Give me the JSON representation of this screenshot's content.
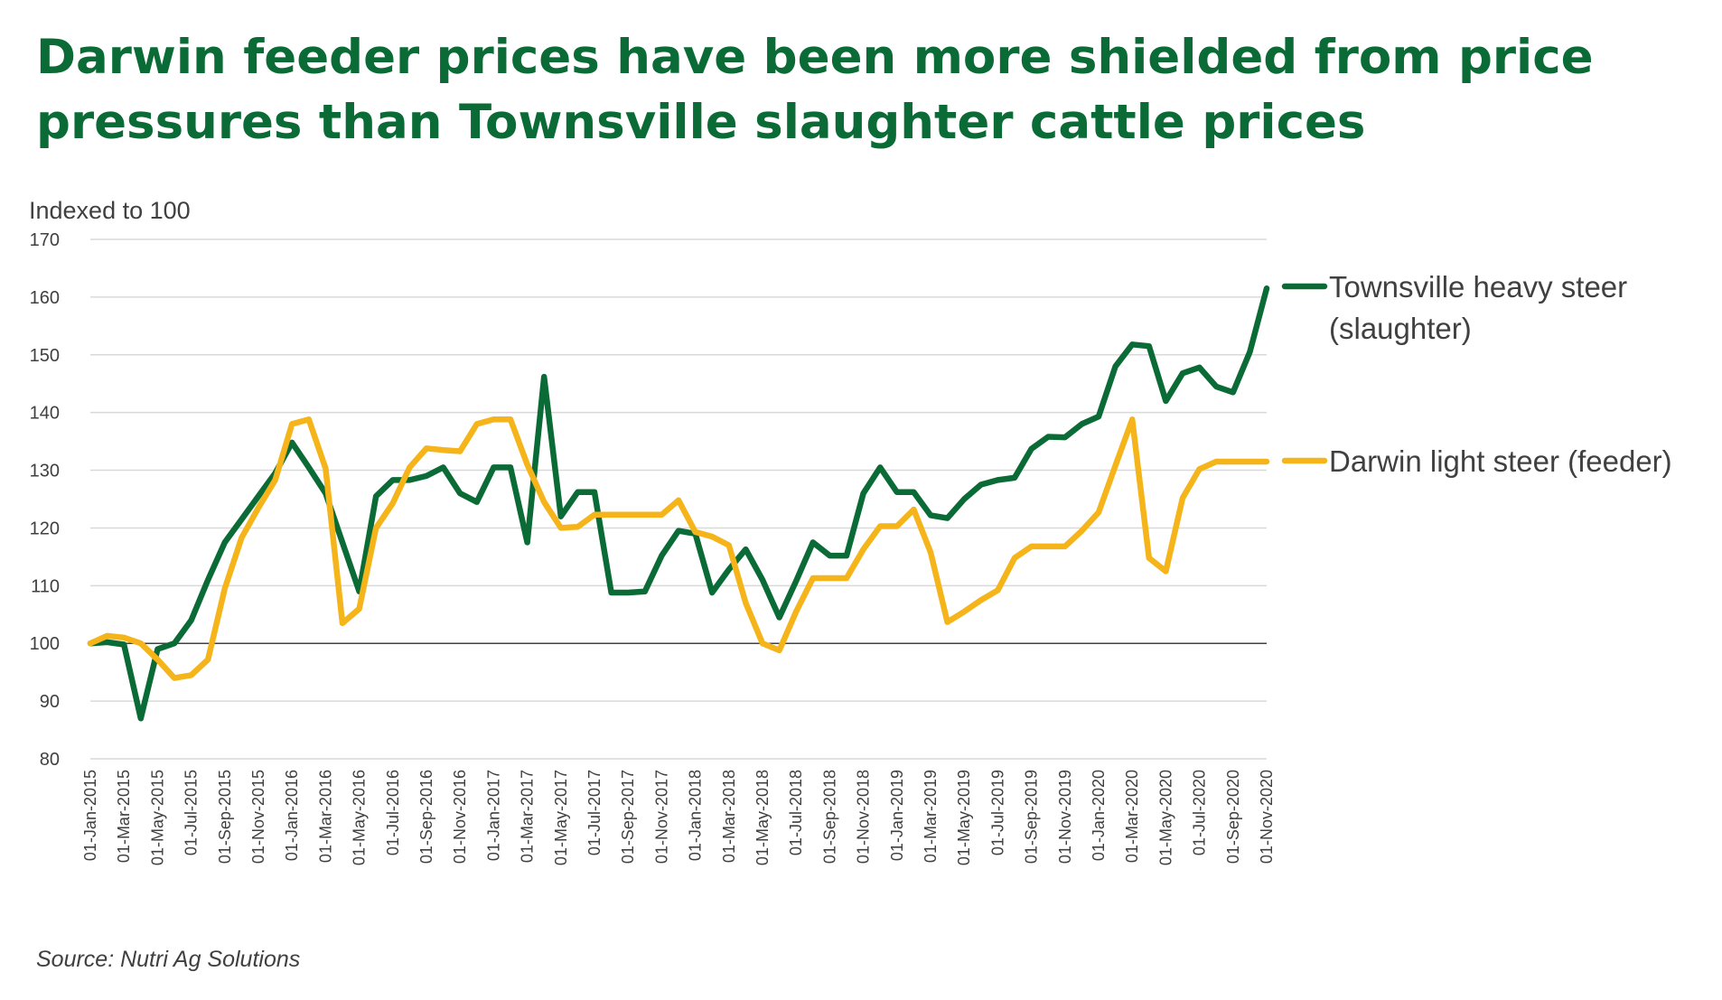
{
  "title": {
    "line1": "Darwin feeder prices have been more shielded from price",
    "line2": "pressures than Townsville slaughter cattle prices"
  },
  "source": "Source: Nutri Ag Solutions",
  "chart_data": {
    "type": "line",
    "ylabel": "Indexed to 100",
    "ylim": [
      80,
      170
    ],
    "yticks": [
      80,
      90,
      100,
      110,
      120,
      130,
      140,
      150,
      160,
      170
    ],
    "grid": true,
    "reference_line": 100,
    "legend_placement": "right",
    "x_start": "01-Jan-2015",
    "x_end": "01-Nov-2020",
    "x_tick_labels": [
      "01-Jan-2015",
      "01-Mar-2015",
      "01-May-2015",
      "01-Jul-2015",
      "01-Sep-2015",
      "01-Nov-2015",
      "01-Jan-2016",
      "01-Mar-2016",
      "01-May-2016",
      "01-Jul-2016",
      "01-Sep-2016",
      "01-Nov-2016",
      "01-Jan-2017",
      "01-Mar-2017",
      "01-May-2017",
      "01-Jul-2017",
      "01-Sep-2017",
      "01-Nov-2017",
      "01-Jan-2018",
      "01-Mar-2018",
      "01-May-2018",
      "01-Jul-2018",
      "01-Sep-2018",
      "01-Nov-2018",
      "01-Jan-2019",
      "01-Mar-2019",
      "01-May-2019",
      "01-Jul-2019",
      "01-Sep-2019",
      "01-Nov-2019",
      "01-Jan-2020",
      "01-Mar-2020",
      "01-May-2020",
      "01-Jul-2020",
      "01-Sep-2020",
      "01-Nov-2020"
    ],
    "series": [
      {
        "name": "Townsville heavy steer (slaughter)",
        "color": "#0b6b36",
        "points": [
          [
            "01-Jan-2015",
            100
          ],
          [
            "01-Feb-2015",
            100.2
          ],
          [
            "01-Mar-2015",
            99.8
          ],
          [
            "01-Apr-2015",
            87
          ],
          [
            "01-May-2015",
            99
          ],
          [
            "01-Jun-2015",
            100
          ],
          [
            "01-Jul-2015",
            104
          ],
          [
            "01-Aug-2015",
            111
          ],
          [
            "01-Sep-2015",
            117.5
          ],
          [
            "01-Oct-2015",
            121.5
          ],
          [
            "01-Nov-2015",
            125.5
          ],
          [
            "01-Dec-2015",
            129.5
          ],
          [
            "01-Jan-2016",
            134.8
          ],
          [
            "01-Feb-2016",
            130.5
          ],
          [
            "01-Mar-2016",
            126
          ],
          [
            "01-Apr-2016",
            117.5
          ],
          [
            "01-May-2016",
            109
          ],
          [
            "01-Jun-2016",
            125.5
          ],
          [
            "01-Jul-2016",
            128.3
          ],
          [
            "01-Aug-2016",
            128.3
          ],
          [
            "01-Sep-2016",
            129
          ],
          [
            "01-Oct-2016",
            130.5
          ],
          [
            "01-Nov-2016",
            126
          ],
          [
            "01-Dec-2016",
            124.5
          ],
          [
            "01-Jan-2017",
            130.5
          ],
          [
            "01-Feb-2017",
            130.5
          ],
          [
            "01-Mar-2017",
            117.5
          ],
          [
            "01-Apr-2017",
            146.2
          ],
          [
            "01-May-2017",
            122
          ],
          [
            "01-Jun-2017",
            126.2
          ],
          [
            "01-Jul-2017",
            126.2
          ],
          [
            "01-Aug-2017",
            108.8
          ],
          [
            "01-Sep-2017",
            108.8
          ],
          [
            "01-Oct-2017",
            109
          ],
          [
            "01-Nov-2017",
            115.2
          ],
          [
            "01-Dec-2017",
            119.5
          ],
          [
            "01-Jan-2018",
            119
          ],
          [
            "01-Feb-2018",
            108.8
          ],
          [
            "01-Mar-2018",
            112.8
          ],
          [
            "01-Apr-2018",
            116.3
          ],
          [
            "01-May-2018",
            111
          ],
          [
            "01-Jun-2018",
            104.5
          ],
          [
            "01-Jul-2018",
            110.8
          ],
          [
            "01-Aug-2018",
            117.5
          ],
          [
            "01-Sep-2018",
            115.2
          ],
          [
            "01-Oct-2018",
            115.2
          ],
          [
            "01-Nov-2018",
            126
          ],
          [
            "01-Dec-2018",
            130.5
          ],
          [
            "01-Jan-2019",
            126.2
          ],
          [
            "01-Feb-2019",
            126.2
          ],
          [
            "01-Mar-2019",
            122.2
          ],
          [
            "01-Apr-2019",
            121.7
          ],
          [
            "01-May-2019",
            125
          ],
          [
            "01-Jun-2019",
            127.5
          ],
          [
            "01-Jul-2019",
            128.3
          ],
          [
            "01-Aug-2019",
            128.7
          ],
          [
            "01-Sep-2019",
            133.7
          ],
          [
            "01-Oct-2019",
            135.8
          ],
          [
            "01-Nov-2019",
            135.7
          ],
          [
            "01-Dec-2019",
            138
          ],
          [
            "01-Jan-2020",
            139.3
          ],
          [
            "01-Feb-2020",
            148
          ],
          [
            "01-Mar-2020",
            151.8
          ],
          [
            "01-Apr-2020",
            151.5
          ],
          [
            "01-May-2020",
            142
          ],
          [
            "01-Jun-2020",
            146.8
          ],
          [
            "01-Jul-2020",
            147.8
          ],
          [
            "01-Aug-2020",
            144.5
          ],
          [
            "01-Sep-2020",
            143.5
          ],
          [
            "01-Oct-2020",
            150.5
          ],
          [
            "01-Nov-2020",
            161.5
          ]
        ]
      },
      {
        "name": "Darwin light steer (feeder)",
        "color": "#f4b41a",
        "points": [
          [
            "01-Jan-2015",
            100
          ],
          [
            "01-Feb-2015",
            101.3
          ],
          [
            "01-Mar-2015",
            101
          ],
          [
            "01-Apr-2015",
            100
          ],
          [
            "01-May-2015",
            97.2
          ],
          [
            "01-Jun-2015",
            94
          ],
          [
            "01-Jul-2015",
            94.5
          ],
          [
            "01-Aug-2015",
            97.2
          ],
          [
            "01-Sep-2015",
            109.5
          ],
          [
            "01-Oct-2015",
            118.3
          ],
          [
            "01-Nov-2015",
            123.5
          ],
          [
            "01-Dec-2015",
            128.3
          ],
          [
            "01-Jan-2016",
            138
          ],
          [
            "01-Feb-2016",
            138.8
          ],
          [
            "01-Mar-2016",
            130.3
          ],
          [
            "01-Apr-2016",
            103.5
          ],
          [
            "01-May-2016",
            106
          ],
          [
            "01-Jun-2016",
            120
          ],
          [
            "01-Jul-2016",
            124.3
          ],
          [
            "01-Aug-2016",
            130.5
          ],
          [
            "01-Sep-2016",
            133.8
          ],
          [
            "01-Oct-2016",
            133.5
          ],
          [
            "01-Nov-2016",
            133.3
          ],
          [
            "01-Dec-2016",
            138
          ],
          [
            "01-Jan-2017",
            138.8
          ],
          [
            "01-Feb-2017",
            138.8
          ],
          [
            "01-Mar-2017",
            131
          ],
          [
            "01-Apr-2017",
            124.5
          ],
          [
            "01-May-2017",
            120
          ],
          [
            "01-Jun-2017",
            120.2
          ],
          [
            "01-Jul-2017",
            122.3
          ],
          [
            "01-Aug-2017",
            122.3
          ],
          [
            "01-Sep-2017",
            122.3
          ],
          [
            "01-Oct-2017",
            122.3
          ],
          [
            "01-Nov-2017",
            122.3
          ],
          [
            "01-Dec-2017",
            124.8
          ],
          [
            "01-Jan-2018",
            119.3
          ],
          [
            "01-Feb-2018",
            118.5
          ],
          [
            "01-Mar-2018",
            117
          ],
          [
            "01-Apr-2018",
            107
          ],
          [
            "01-May-2018",
            100
          ],
          [
            "01-Jun-2018",
            98.8
          ],
          [
            "01-Jul-2018",
            105.5
          ],
          [
            "01-Aug-2018",
            111.3
          ],
          [
            "01-Sep-2018",
            111.3
          ],
          [
            "01-Oct-2018",
            111.3
          ],
          [
            "01-Nov-2018",
            116.3
          ],
          [
            "01-Dec-2018",
            120.3
          ],
          [
            "01-Jan-2019",
            120.3
          ],
          [
            "01-Feb-2019",
            123.2
          ],
          [
            "01-Mar-2019",
            115.8
          ],
          [
            "01-Apr-2019",
            103.7
          ],
          [
            "01-May-2019",
            105.5
          ],
          [
            "01-Jun-2019",
            107.5
          ],
          [
            "01-Jul-2019",
            109.2
          ],
          [
            "01-Aug-2019",
            114.8
          ],
          [
            "01-Sep-2019",
            116.8
          ],
          [
            "01-Oct-2019",
            116.8
          ],
          [
            "01-Nov-2019",
            116.8
          ],
          [
            "01-Dec-2019",
            119.5
          ],
          [
            "01-Jan-2020",
            122.7
          ],
          [
            "01-Feb-2020",
            130.8
          ],
          [
            "01-Mar-2020",
            138.8
          ],
          [
            "01-Apr-2020",
            114.8
          ],
          [
            "01-May-2020",
            112.5
          ],
          [
            "01-Jun-2020",
            125.2
          ],
          [
            "01-Jul-2020",
            130.2
          ],
          [
            "01-Aug-2020",
            131.5
          ],
          [
            "01-Sep-2020",
            131.5
          ],
          [
            "01-Oct-2020",
            131.5
          ],
          [
            "01-Nov-2020",
            131.5
          ]
        ]
      }
    ]
  }
}
